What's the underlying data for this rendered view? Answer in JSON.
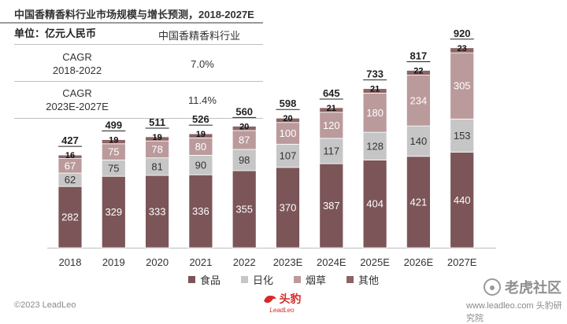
{
  "header": {
    "title": "中国香精香料行业市场规模与增长预测，2018-2027E",
    "unit": "单位：亿元人民币"
  },
  "cagr_table": {
    "title": "中国香精香料行业",
    "rows": [
      {
        "period_line1": "CAGR",
        "period_line2": "2018-2022",
        "value": "7.0%"
      },
      {
        "period_line1": "CAGR",
        "period_line2": "2023E-2027E",
        "value": "11.4%"
      }
    ]
  },
  "chart_data": {
    "type": "bar",
    "stacked": true,
    "categories": [
      "2018",
      "2019",
      "2020",
      "2021",
      "2022",
      "2023E",
      "2024E",
      "2025E",
      "2026E",
      "2027E"
    ],
    "series": [
      {
        "name": "食品",
        "color": "#7b5558",
        "values": [
          282,
          329,
          333,
          336,
          355,
          370,
          387,
          404,
          421,
          440
        ]
      },
      {
        "name": "日化",
        "color": "#c6c6c6",
        "values": [
          62,
          75,
          81,
          90,
          98,
          107,
          117,
          128,
          140,
          153
        ]
      },
      {
        "name": "烟草",
        "color": "#bb9a9c",
        "values": [
          67,
          75,
          78,
          80,
          87,
          100,
          120,
          180,
          234,
          305
        ]
      },
      {
        "name": "其他",
        "color": "#8c6466",
        "values": [
          16,
          19,
          19,
          19,
          20,
          20,
          21,
          21,
          22,
          23
        ]
      }
    ],
    "totals": [
      427,
      499,
      511,
      526,
      560,
      598,
      645,
      733,
      817,
      920
    ],
    "ylim": [
      0,
      960
    ],
    "title": "中国香精香料行业市场规模与增长预测，2018-2027E",
    "ylabel": "亿元人民币",
    "legend_position": "bottom-center"
  },
  "footer": {
    "copyright": "©2023 LeadLeo",
    "logo_cn": "头豹",
    "logo_en": "LeadLeo",
    "site": "www.leadleo.com",
    "watermark_corner": "老虎社区",
    "watermark_sub": "头豹研究院"
  }
}
